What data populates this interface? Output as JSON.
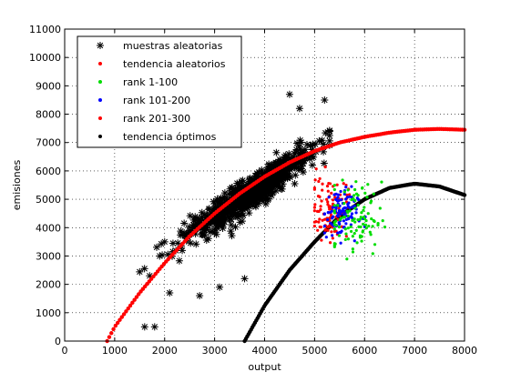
{
  "chart_data": {
    "type": "scatter",
    "title": "",
    "xlabel": "output",
    "ylabel": "emisiones",
    "xlim": [
      0,
      8000
    ],
    "ylim": [
      0,
      11000
    ],
    "xticks": [
      "0",
      "1000",
      "2000",
      "3000",
      "4000",
      "5000",
      "6000",
      "7000",
      "8000"
    ],
    "yticks": [
      "0",
      "1000",
      "2000",
      "3000",
      "4000",
      "5000",
      "6000",
      "7000",
      "8000",
      "9000",
      "10000",
      "11000"
    ],
    "grid": true,
    "legend_position": "top-left",
    "series": [
      {
        "name": "muestras aleatorias",
        "marker": "asterisk",
        "color": "#000000",
        "cloud": {
          "center": [
            3700,
            5200
          ],
          "spread": [
            620,
            850
          ],
          "orientation": 0.95,
          "count": 900,
          "x_range": [
            1500,
            5300
          ],
          "y_range": [
            500,
            8700
          ]
        },
        "points": [
          [
            1600,
            500
          ],
          [
            1800,
            500
          ],
          [
            1900,
            3000
          ],
          [
            2000,
            3500
          ],
          [
            1700,
            2300
          ],
          [
            2100,
            1700
          ],
          [
            4500,
            8700
          ],
          [
            5200,
            8500
          ],
          [
            4700,
            8200
          ],
          [
            3100,
            1900
          ],
          [
            3600,
            2200
          ],
          [
            2500,
            3900
          ],
          [
            2700,
            1600
          ]
        ]
      },
      {
        "name": "tendencia aleatorios",
        "marker": "dot",
        "color": "#ff0000",
        "x": [
          850,
          1000,
          1500,
          2000,
          2500,
          3000,
          3500,
          4000,
          4500,
          5000,
          5500,
          6000,
          6500,
          7000,
          7500,
          8000
        ],
        "y": [
          0,
          500,
          1700,
          2750,
          3700,
          4500,
          5200,
          5800,
          6300,
          6700,
          7000,
          7200,
          7350,
          7450,
          7480,
          7450
        ]
      },
      {
        "name": "rank 1-100",
        "marker": "dot",
        "color": "#00dd00",
        "cloud": {
          "center": [
            5800,
            4300
          ],
          "spread": [
            270,
            650
          ],
          "count": 100,
          "x_range": [
            5400,
            6500
          ],
          "y_range": [
            2800,
            6100
          ]
        }
      },
      {
        "name": "rank 101-200",
        "marker": "dot",
        "color": "#0000ff",
        "cloud": {
          "center": [
            5500,
            4500
          ],
          "spread": [
            180,
            450
          ],
          "count": 100,
          "x_range": [
            5200,
            6100
          ],
          "y_range": [
            3400,
            6100
          ]
        }
      },
      {
        "name": "rank 201-300",
        "marker": "dot",
        "color": "#ff0000",
        "cloud": {
          "center": [
            5300,
            4700
          ],
          "spread": [
            180,
            550
          ],
          "count": 100,
          "x_range": [
            5000,
            6000
          ],
          "y_range": [
            2600,
            7600
          ]
        }
      },
      {
        "name": "tendencia óptimos",
        "marker": "dot",
        "color": "#000000",
        "x": [
          3600,
          4000,
          4500,
          5000,
          5500,
          6000,
          6500,
          7000,
          7500,
          8000
        ],
        "y": [
          0,
          1250,
          2500,
          3500,
          4400,
          5000,
          5400,
          5550,
          5450,
          5150
        ]
      }
    ]
  }
}
